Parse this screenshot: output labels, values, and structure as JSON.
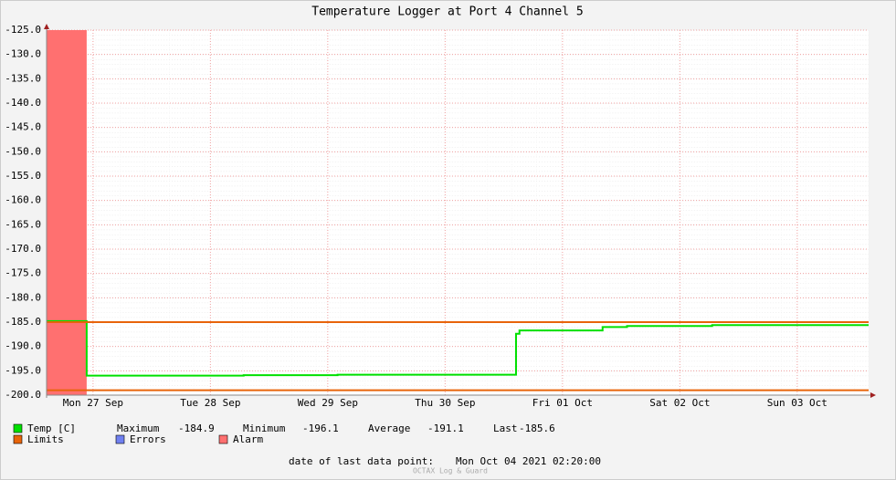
{
  "chart_data": {
    "type": "line",
    "title": "Temperature Logger at Port 4 Channel 5",
    "xlim": [
      2.5,
      170.6
    ],
    "xticks": [
      {
        "value": 12,
        "label": "Mon 27 Sep"
      },
      {
        "value": 36,
        "label": "Tue 28 Sep"
      },
      {
        "value": 60,
        "label": "Wed 29 Sep"
      },
      {
        "value": 84,
        "label": "Thu 30 Sep"
      },
      {
        "value": 108,
        "label": "Fri 01 Oct"
      },
      {
        "value": 132,
        "label": "Sat 02 Oct"
      },
      {
        "value": 156,
        "label": "Sun 03 Oct"
      }
    ],
    "ylim": [
      -200,
      -125
    ],
    "yticks": [
      {
        "value": -125,
        "label": "-125.0"
      },
      {
        "value": -130,
        "label": "-130.0"
      },
      {
        "value": -135,
        "label": "-135.0"
      },
      {
        "value": -140,
        "label": "-140.0"
      },
      {
        "value": -145,
        "label": "-145.0"
      },
      {
        "value": -150,
        "label": "-150.0"
      },
      {
        "value": -155,
        "label": "-155.0"
      },
      {
        "value": -160,
        "label": "-160.0"
      },
      {
        "value": -165,
        "label": "-165.0"
      },
      {
        "value": -170,
        "label": "-170.0"
      },
      {
        "value": -175,
        "label": "-175.0"
      },
      {
        "value": -180,
        "label": "-180.0"
      },
      {
        "value": -185,
        "label": "-185.0"
      },
      {
        "value": -190,
        "label": "-190.0"
      },
      {
        "value": -195,
        "label": "-195.0"
      },
      {
        "value": -200,
        "label": "-200.0"
      }
    ],
    "grid": true,
    "series": [
      {
        "name": "Temp [C]",
        "color": "#00e000",
        "x": [
          2.5,
          10.7,
          10.7,
          42.8,
          42.8,
          62,
          62,
          98.5,
          98.5,
          99.2,
          99.2,
          116.2,
          116.2,
          121.2,
          121.2,
          138.6,
          138.6,
          170.6
        ],
        "values": [
          -184.8,
          -184.8,
          -196,
          -196,
          -195.9,
          -195.9,
          -195.8,
          -195.8,
          -187.4,
          -187.4,
          -186.7,
          -186.7,
          -186,
          -186,
          -185.8,
          -185.8,
          -185.6,
          -185.6
        ]
      },
      {
        "name": "Limits",
        "color": "#e8640a",
        "values": [
          -185,
          -199
        ]
      },
      {
        "name": "Errors",
        "color": "#7080f0",
        "values": []
      },
      {
        "name": "Alarm",
        "color": "#ff7070",
        "spans": [
          [
            2.5,
            10.7
          ]
        ]
      }
    ],
    "stats": [
      {
        "label": "Maximum",
        "value": -184.9
      },
      {
        "label": "Minimum",
        "value": -196.1
      },
      {
        "label": "Average",
        "value": -191.1
      },
      {
        "label": "Last",
        "value": -185.6
      }
    ],
    "last_point_label": "date of last data point:",
    "last_point": "Mon Oct 04 2021 02:20:00",
    "credit": "OCTAX Log & Guard"
  }
}
